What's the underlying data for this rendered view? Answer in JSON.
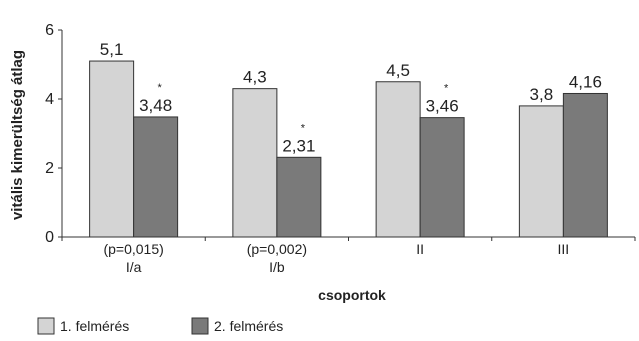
{
  "chart_data": {
    "type": "bar",
    "xlabel": "csoportok",
    "ylabel": "vitális kimerültség átlag",
    "ylim": [
      0,
      6
    ],
    "yticks": [
      "0",
      "2",
      "4",
      "6"
    ],
    "categories": [
      {
        "line1": "(p=0,015)",
        "line2": "I/a"
      },
      {
        "line1": "(p=0,002)",
        "line2": "I/b"
      },
      {
        "line1": "II",
        "line2": ""
      },
      {
        "line1": "III",
        "line2": ""
      }
    ],
    "series": [
      {
        "name": "1. felmérés",
        "color": "#d4d4d4",
        "values": [
          5.1,
          4.3,
          4.5,
          3.8
        ],
        "labels": [
          "5,1",
          "4,3",
          "4,5",
          "3,8"
        ]
      },
      {
        "name": "2. felmérés",
        "color": "#7a7a7a",
        "values": [
          3.48,
          2.31,
          3.46,
          4.16
        ],
        "labels": [
          "3,48",
          "2,31",
          "3,46",
          "4,16"
        ]
      }
    ],
    "annotations": [
      "*",
      "*",
      "*",
      ""
    ],
    "grid": false,
    "legend": "bottom-left"
  }
}
